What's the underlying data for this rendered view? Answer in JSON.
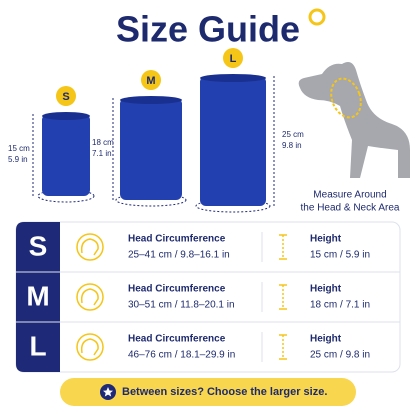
{
  "title": "Size Guide",
  "sizes": [
    {
      "label": "S",
      "height_cm": "15 cm",
      "height_in": "5.9 in"
    },
    {
      "label": "M",
      "height_cm": "18 cm",
      "height_in": "7.1 in"
    },
    {
      "label": "L",
      "height_cm": "25 cm",
      "height_in": "9.8 in"
    }
  ],
  "measure_note": [
    "Measure Around",
    "the Head & Neck Area"
  ],
  "table": {
    "rows": [
      {
        "size": "S",
        "head_title": "Head Circumference",
        "head_value": "25–41 cm / 9.8–16.1 in",
        "height_title": "Height",
        "height_value": "15 cm / 5.9 in"
      },
      {
        "size": "M",
        "head_title": "Head Circumference",
        "head_value": "30–51 cm / 11.8–20.1 in",
        "height_title": "Height",
        "height_value": "18 cm / 7.1 in"
      },
      {
        "size": "L",
        "head_title": "Head Circumference",
        "head_value": "46–76 cm / 18.1–29.9 in",
        "height_title": "Height",
        "height_value": "25 cm / 9.8 in"
      }
    ]
  },
  "footer": "Between sizes? Choose the larger size."
}
